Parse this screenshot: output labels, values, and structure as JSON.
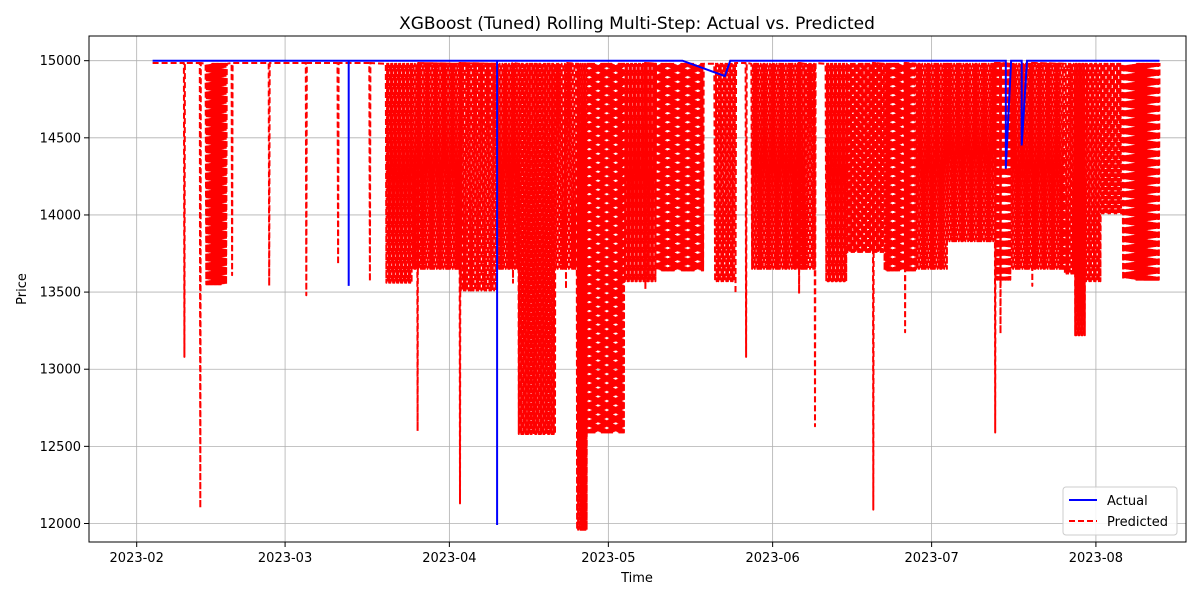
{
  "chart_data": {
    "type": "line",
    "title": "XGBoost (Tuned) Rolling Multi-Step: Actual vs. Predicted",
    "xlabel": "Time",
    "ylabel": "Price",
    "xlim": [
      "2023-01-23",
      "2023-08-18"
    ],
    "ylim": [
      11880,
      15160
    ],
    "x_ticks": [
      "2023-02",
      "2023-03",
      "2023-04",
      "2023-05",
      "2023-06",
      "2023-07",
      "2023-08"
    ],
    "x_tick_dates": [
      "2023-02-01",
      "2023-03-01",
      "2023-04-01",
      "2023-05-01",
      "2023-06-01",
      "2023-07-01",
      "2023-08-01"
    ],
    "y_ticks": [
      12000,
      12500,
      13000,
      13500,
      14000,
      14500,
      15000
    ],
    "grid": true,
    "legend_position": "lower-right",
    "colors": {
      "actual": "#0000ff",
      "predicted": "#ff0000"
    },
    "series": [
      {
        "name": "Actual",
        "style": "solid",
        "color": "#0000ff",
        "points": [
          [
            "2023-02-04",
            15000
          ],
          [
            "2023-03-13",
            15000
          ],
          [
            "2023-03-13",
            13540
          ],
          [
            "2023-03-13",
            15000
          ],
          [
            "2023-04-10",
            15000
          ],
          [
            "2023-04-10",
            11990
          ],
          [
            "2023-04-10",
            15000
          ],
          [
            "2023-05-15",
            15000
          ],
          [
            "2023-05-23",
            14900
          ],
          [
            "2023-05-24",
            15000
          ],
          [
            "2023-07-15",
            15000
          ],
          [
            "2023-07-15",
            14300
          ],
          [
            "2023-07-16",
            15000
          ],
          [
            "2023-07-18",
            15000
          ],
          [
            "2023-07-18",
            14450
          ],
          [
            "2023-07-19",
            15000
          ],
          [
            "2023-08-13",
            15000
          ]
        ]
      },
      {
        "name": "Predicted",
        "style": "dashed",
        "color": "#ff0000",
        "dense_blocks": [
          {
            "start": "2023-02-14",
            "end": "2023-02-18",
            "low": 13550,
            "high": 14980,
            "period": 0.25
          },
          {
            "start": "2023-03-20",
            "end": "2023-03-25",
            "low": 13560,
            "high": 14980,
            "period": 0.25
          },
          {
            "start": "2023-03-25",
            "end": "2023-04-03",
            "low": 13650,
            "high": 14980,
            "period": 0.25
          },
          {
            "start": "2023-04-03",
            "end": "2023-04-10",
            "low": 13510,
            "high": 14980,
            "period": 0.3
          },
          {
            "start": "2023-04-10",
            "end": "2023-04-14",
            "low": 13650,
            "high": 14980,
            "period": 0.25
          },
          {
            "start": "2023-04-14",
            "end": "2023-04-21",
            "low": 12580,
            "high": 14980,
            "period": 0.22
          },
          {
            "start": "2023-04-21",
            "end": "2023-04-25",
            "low": 13650,
            "high": 14980,
            "period": 0.3
          },
          {
            "start": "2023-04-25",
            "end": "2023-04-27",
            "low": 11960,
            "high": 14980,
            "period": 0.2
          },
          {
            "start": "2023-04-27",
            "end": "2023-05-04",
            "low": 12590,
            "high": 14980,
            "period": 0.22
          },
          {
            "start": "2023-05-04",
            "end": "2023-05-10",
            "low": 13570,
            "high": 14980,
            "period": 0.25
          },
          {
            "start": "2023-05-10",
            "end": "2023-05-19",
            "low": 13640,
            "high": 14980,
            "period": 0.25
          },
          {
            "start": "2023-05-21",
            "end": "2023-05-25",
            "low": 13570,
            "high": 14980,
            "period": 0.3
          },
          {
            "start": "2023-05-28",
            "end": "2023-06-07",
            "low": 13650,
            "high": 14980,
            "period": 0.25
          },
          {
            "start": "2023-06-07",
            "end": "2023-06-09",
            "low": 13650,
            "high": 14980,
            "period": 0.3
          },
          {
            "start": "2023-06-11",
            "end": "2023-06-15",
            "low": 13570,
            "high": 14980,
            "period": 0.25
          },
          {
            "start": "2023-06-15",
            "end": "2023-06-22",
            "low": 13760,
            "high": 14980,
            "period": 0.25
          },
          {
            "start": "2023-06-22",
            "end": "2023-06-28",
            "low": 13640,
            "high": 14980,
            "period": 0.25
          },
          {
            "start": "2023-06-28",
            "end": "2023-07-04",
            "low": 13650,
            "high": 14980,
            "period": 0.25
          },
          {
            "start": "2023-07-04",
            "end": "2023-07-13",
            "low": 13830,
            "high": 14980,
            "period": 0.25
          },
          {
            "start": "2023-07-13",
            "end": "2023-07-16",
            "low": 13580,
            "high": 14980,
            "period": 0.3
          },
          {
            "start": "2023-07-16",
            "end": "2023-07-26",
            "low": 13650,
            "high": 14980,
            "period": 0.25
          },
          {
            "start": "2023-07-26",
            "end": "2023-07-28",
            "low": 13620,
            "high": 14980,
            "period": 0.3
          },
          {
            "start": "2023-07-28",
            "end": "2023-07-30",
            "low": 13220,
            "high": 14980,
            "period": 0.2
          },
          {
            "start": "2023-07-30",
            "end": "2023-08-02",
            "low": 13570,
            "high": 14980,
            "period": 0.3
          },
          {
            "start": "2023-08-02",
            "end": "2023-08-06",
            "low": 14010,
            "high": 14980,
            "period": 0.3
          },
          {
            "start": "2023-08-06",
            "end": "2023-08-13",
            "low": 13580,
            "high": 14980,
            "period": 0.25
          }
        ],
        "spikes": [
          [
            "2023-02-10",
            13080
          ],
          [
            "2023-02-13",
            12100
          ],
          [
            "2023-02-19",
            13610
          ],
          [
            "2023-02-26",
            13540
          ],
          [
            "2023-03-05",
            13480
          ],
          [
            "2023-03-11",
            13680
          ],
          [
            "2023-03-17",
            13570
          ],
          [
            "2023-03-26",
            12600
          ],
          [
            "2023-04-03",
            12130
          ],
          [
            "2023-04-13",
            13560
          ],
          [
            "2023-04-23",
            13520
          ],
          [
            "2023-05-08",
            13520
          ],
          [
            "2023-05-25",
            13490
          ],
          [
            "2023-05-27",
            13080
          ],
          [
            "2023-06-06",
            13490
          ],
          [
            "2023-06-09",
            12630
          ],
          [
            "2023-06-20",
            12090
          ],
          [
            "2023-06-26",
            13240
          ],
          [
            "2023-07-13",
            12590
          ],
          [
            "2023-07-14",
            13230
          ],
          [
            "2023-07-20",
            13540
          ]
        ],
        "baseline": 14985,
        "baseline_start": "2023-02-04",
        "baseline_end": "2023-08-13"
      }
    ]
  }
}
